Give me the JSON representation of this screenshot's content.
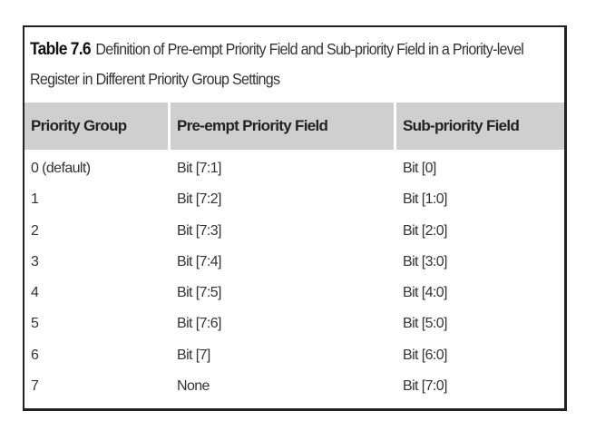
{
  "caption": {
    "label": "Table 7.6",
    "text": "Definition of Pre-empt Priority Field and Sub-priority Field in a Priority-level Register in Different Priority Group Settings"
  },
  "table": {
    "headers": [
      "Priority Group",
      "Pre-empt Priority Field",
      "Sub-priority Field"
    ],
    "rows": [
      [
        "0 (default)",
        "Bit [7:1]",
        "Bit [0]"
      ],
      [
        "1",
        "Bit [7:2]",
        "Bit [1:0]"
      ],
      [
        "2",
        "Bit [7:3]",
        "Bit [2:0]"
      ],
      [
        "3",
        "Bit [7:4]",
        "Bit [3:0]"
      ],
      [
        "4",
        "Bit [7:5]",
        "Bit [4:0]"
      ],
      [
        "5",
        "Bit [7:6]",
        "Bit [5:0]"
      ],
      [
        "6",
        "Bit [7]",
        "Bit [6:0]"
      ],
      [
        "7",
        "None",
        "Bit [7:0]"
      ]
    ]
  }
}
